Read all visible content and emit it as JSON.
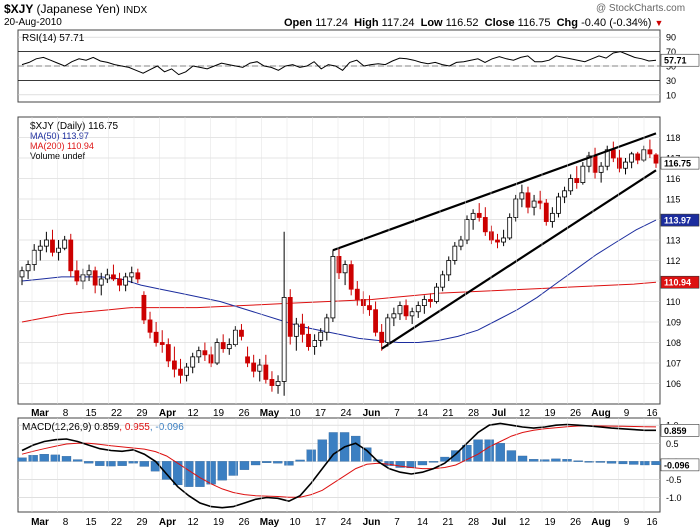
{
  "header": {
    "symbol": "$XJY",
    "name": "(Japanese Yen)",
    "exchange": "INDX",
    "date": "20-Aug-2010",
    "open_label": "Open",
    "open": "117.24",
    "high_label": "High",
    "high": "117.24",
    "low_label": "Low",
    "low": "116.52",
    "close_label": "Close",
    "close": "116.75",
    "chg_label": "Chg",
    "chg": "-0.40 (-0.34%)",
    "watermark": "@ StockCharts.com"
  },
  "colors": {
    "up": "#000000",
    "down": "#cc0000",
    "ma50": "#1c2d9e",
    "ma200": "#dd1111",
    "macd": "#000000",
    "signal": "#dd1111",
    "histogram": "#3b7fc2",
    "grid": "#cccccc",
    "trendline": "#000000"
  },
  "chart_data": [
    {
      "type": "line",
      "panel": "rsi",
      "title": "RSI(14) 57.71",
      "last_value_label": "57.71",
      "ylim": [
        0,
        100
      ],
      "yticks": [
        90,
        70,
        50,
        30,
        10
      ],
      "reference_lines": [
        70,
        30
      ],
      "values": [
        52,
        55,
        60,
        62,
        58,
        54,
        50,
        56,
        60,
        58,
        62,
        57,
        55,
        52,
        50,
        48,
        44,
        40,
        45,
        50,
        42,
        46,
        38,
        42,
        50,
        48,
        46,
        50,
        54,
        52,
        50,
        48,
        54,
        56,
        50,
        48,
        44,
        50,
        52,
        48,
        50,
        56,
        46,
        52,
        50,
        44,
        55,
        58,
        50,
        52,
        53,
        52,
        57,
        61,
        60,
        58,
        55,
        53,
        55,
        52,
        50,
        55,
        56,
        58,
        60,
        55,
        60,
        63,
        60,
        58,
        62,
        64,
        56,
        56,
        58,
        64,
        62,
        60,
        58,
        56,
        60,
        64,
        61,
        68,
        70,
        66,
        62,
        60,
        57,
        58
      ]
    },
    {
      "type": "candlestick",
      "panel": "price",
      "title": "$XJY (Daily) 116.75",
      "ylim": [
        105,
        119
      ],
      "yticks": [
        106,
        107,
        108,
        109,
        110,
        111,
        112,
        113,
        114,
        115,
        116,
        117,
        118
      ],
      "grid": true,
      "legend_position": "top-left",
      "legend": [
        "$XJY (Daily) 116.75",
        "MA(50) 113.97",
        "MA(200) 110.94",
        "Volume undef"
      ],
      "x_tick_labels": [
        "Mar",
        "8",
        "15",
        "22",
        "29",
        "Apr",
        "12",
        "19",
        "26",
        "May",
        "10",
        "17",
        "24",
        "Jun",
        "7",
        "14",
        "21",
        "28",
        "Jul",
        "12",
        "19",
        "26",
        "Aug",
        "9",
        "16"
      ],
      "series_labels": {
        "last_close": "116.75",
        "ma50": "113.97",
        "ma200": "110.94"
      },
      "candles": [
        [
          111.2,
          111.7,
          110.8,
          111.5
        ],
        [
          111.5,
          112.0,
          111.1,
          111.8
        ],
        [
          111.8,
          112.8,
          111.5,
          112.5
        ],
        [
          112.5,
          113.0,
          112.0,
          112.7
        ],
        [
          112.7,
          113.4,
          112.4,
          113.0
        ],
        [
          113.0,
          113.5,
          112.2,
          112.4
        ],
        [
          112.4,
          113.0,
          112.0,
          112.6
        ],
        [
          112.6,
          113.2,
          112.5,
          113.0
        ],
        [
          113.0,
          113.3,
          111.2,
          111.5
        ],
        [
          111.5,
          112.0,
          110.8,
          111.0
        ],
        [
          111.0,
          111.6,
          110.6,
          111.3
        ],
        [
          111.3,
          111.8,
          111.0,
          111.5
        ],
        [
          111.5,
          111.7,
          110.4,
          110.8
        ],
        [
          110.8,
          111.4,
          110.3,
          111.1
        ],
        [
          111.1,
          111.6,
          110.9,
          111.3
        ],
        [
          111.3,
          111.8,
          111.0,
          111.1
        ],
        [
          111.1,
          111.4,
          110.5,
          110.8
        ],
        [
          110.8,
          111.4,
          110.5,
          111.2
        ],
        [
          111.2,
          111.7,
          110.9,
          111.4
        ],
        [
          111.4,
          111.6,
          110.9,
          111.1
        ],
        [
          110.3,
          110.5,
          108.9,
          109.1
        ],
        [
          109.1,
          109.5,
          108.2,
          108.5
        ],
        [
          108.5,
          109.0,
          107.8,
          108.0
        ],
        [
          108.0,
          108.6,
          107.5,
          107.9
        ],
        [
          107.9,
          108.2,
          106.8,
          107.1
        ],
        [
          107.1,
          107.8,
          106.3,
          106.7
        ],
        [
          106.7,
          107.2,
          106.0,
          106.4
        ],
        [
          106.4,
          107.0,
          106.1,
          106.8
        ],
        [
          106.8,
          107.5,
          106.5,
          107.3
        ],
        [
          107.3,
          107.8,
          107.0,
          107.6
        ],
        [
          107.6,
          108.0,
          107.1,
          107.4
        ],
        [
          107.4,
          107.8,
          106.8,
          107.0
        ],
        [
          107.0,
          108.2,
          106.9,
          108.0
        ],
        [
          108.0,
          108.4,
          107.5,
          107.7
        ],
        [
          107.7,
          108.2,
          107.4,
          107.9
        ],
        [
          107.9,
          108.8,
          107.8,
          108.6
        ],
        [
          108.6,
          108.9,
          108.1,
          108.3
        ],
        [
          107.3,
          107.8,
          106.8,
          107.0
        ],
        [
          107.0,
          107.4,
          106.3,
          106.6
        ],
        [
          106.6,
          107.2,
          106.1,
          106.9
        ],
        [
          106.9,
          107.4,
          106.0,
          106.2
        ],
        [
          106.2,
          106.6,
          105.6,
          105.9
        ],
        [
          105.9,
          106.4,
          105.5,
          106.1
        ],
        [
          106.1,
          113.4,
          105.4,
          110.2
        ],
        [
          110.2,
          110.6,
          107.9,
          108.3
        ],
        [
          108.3,
          109.2,
          107.6,
          108.9
        ],
        [
          108.9,
          109.4,
          108.0,
          108.4
        ],
        [
          108.4,
          108.8,
          107.6,
          107.8
        ],
        [
          107.8,
          108.4,
          107.4,
          108.1
        ],
        [
          108.1,
          108.7,
          107.8,
          108.5
        ],
        [
          108.5,
          109.4,
          108.1,
          109.2
        ],
        [
          109.2,
          112.5,
          109.0,
          112.2
        ],
        [
          112.2,
          112.6,
          111.1,
          111.4
        ],
        [
          111.4,
          112.0,
          110.8,
          111.8
        ],
        [
          111.8,
          112.0,
          110.3,
          110.6
        ],
        [
          110.6,
          111.0,
          109.8,
          110.1
        ],
        [
          110.1,
          110.5,
          109.4,
          109.8
        ],
        [
          109.8,
          110.3,
          109.3,
          109.6
        ],
        [
          109.6,
          110.0,
          108.3,
          108.5
        ],
        [
          108.5,
          108.9,
          107.6,
          108.0
        ],
        [
          108.0,
          109.4,
          107.8,
          109.2
        ],
        [
          109.2,
          109.7,
          108.8,
          109.4
        ],
        [
          109.4,
          110.0,
          109.1,
          109.8
        ],
        [
          109.8,
          110.1,
          109.1,
          109.3
        ],
        [
          109.3,
          109.7,
          108.9,
          109.5
        ],
        [
          109.5,
          110.0,
          109.2,
          109.8
        ],
        [
          109.8,
          110.3,
          109.4,
          110.1
        ],
        [
          110.1,
          110.4,
          109.7,
          110.0
        ],
        [
          110.0,
          110.9,
          109.9,
          110.7
        ],
        [
          110.7,
          111.5,
          110.5,
          111.3
        ],
        [
          111.3,
          112.2,
          111.0,
          112.0
        ],
        [
          112.0,
          112.9,
          111.8,
          112.7
        ],
        [
          112.7,
          113.2,
          112.5,
          113.0
        ],
        [
          113.0,
          114.2,
          112.8,
          114.0
        ],
        [
          114.0,
          114.5,
          113.5,
          114.3
        ],
        [
          114.3,
          114.8,
          113.9,
          114.1
        ],
        [
          114.1,
          114.6,
          113.2,
          113.4
        ],
        [
          113.4,
          113.7,
          112.8,
          113.0
        ],
        [
          113.0,
          113.3,
          112.6,
          112.9
        ],
        [
          112.9,
          113.5,
          112.7,
          113.1
        ],
        [
          113.1,
          114.3,
          113.0,
          114.1
        ],
        [
          114.1,
          115.2,
          113.9,
          115.0
        ],
        [
          115.0,
          115.7,
          114.6,
          115.3
        ],
        [
          115.3,
          115.6,
          114.3,
          114.6
        ],
        [
          114.6,
          115.2,
          114.2,
          114.9
        ],
        [
          114.9,
          115.4,
          114.5,
          114.8
        ],
        [
          114.8,
          115.0,
          113.7,
          113.9
        ],
        [
          113.9,
          114.6,
          113.6,
          114.3
        ],
        [
          114.3,
          115.3,
          114.1,
          115.1
        ],
        [
          115.1,
          115.6,
          114.8,
          115.4
        ],
        [
          115.4,
          116.2,
          115.2,
          116.0
        ],
        [
          116.0,
          116.6,
          115.5,
          115.8
        ],
        [
          115.8,
          116.8,
          115.7,
          116.6
        ],
        [
          116.6,
          117.3,
          116.3,
          117.1
        ],
        [
          117.1,
          117.5,
          116.0,
          116.3
        ],
        [
          116.3,
          116.8,
          115.8,
          116.6
        ],
        [
          116.6,
          117.6,
          116.4,
          117.4
        ],
        [
          117.4,
          117.8,
          116.8,
          117.0
        ],
        [
          117.0,
          117.4,
          116.3,
          116.5
        ],
        [
          116.5,
          117.0,
          116.2,
          116.8
        ],
        [
          116.8,
          117.3,
          116.5,
          117.2
        ],
        [
          117.2,
          117.3,
          116.7,
          116.9
        ],
        [
          116.9,
          117.6,
          116.8,
          117.4
        ],
        [
          117.4,
          117.9,
          117.0,
          117.2
        ],
        [
          117.15,
          117.24,
          116.52,
          116.75
        ]
      ],
      "ma50": [
        111.0,
        111.1,
        111.2,
        111.2,
        111.2,
        111.1,
        110.8,
        110.6,
        110.4,
        110.2,
        110.0,
        109.7,
        109.4,
        109.1,
        108.8,
        108.6,
        108.4,
        108.2,
        108.1,
        108.0,
        108.0,
        108.1,
        108.3,
        108.6,
        109.1,
        109.6,
        110.2,
        110.9,
        111.6,
        112.3,
        112.9,
        113.5,
        113.97
      ],
      "ma200": [
        109.0,
        109.2,
        109.4,
        109.5,
        109.6,
        109.7,
        109.7,
        109.7,
        109.7,
        109.75,
        109.8,
        109.85,
        109.9,
        109.95,
        110.0,
        110.05,
        110.1,
        110.2,
        110.3,
        110.4,
        110.45,
        110.5,
        110.55,
        110.6,
        110.65,
        110.7,
        110.75,
        110.8,
        110.85,
        110.94
      ],
      "annotations": [
        "rising wedge trendlines"
      ]
    },
    {
      "type": "line",
      "panel": "macd",
      "title": "MACD(12,26,9) 0.859, 0.955, -0.096",
      "series_names": [
        "MACD(12,26,9)",
        "signal",
        "histogram"
      ],
      "legend_values": [
        "0.859",
        "0.955",
        "-0.096"
      ],
      "ylim": [
        -1.4,
        1.2
      ],
      "yticks": [
        1.0,
        0.5,
        0.0,
        -0.5,
        -1.0
      ],
      "last_value_labels": [
        "0.859",
        "-0.096"
      ],
      "macd": [
        0.3,
        0.45,
        0.55,
        0.6,
        0.62,
        0.55,
        0.45,
        0.35,
        0.3,
        0.28,
        0.32,
        0.2,
        0.0,
        -0.35,
        -0.7,
        -0.95,
        -1.15,
        -1.25,
        -1.28,
        -1.25,
        -1.15,
        -1.05,
        -1.0,
        -1.02,
        -1.1,
        -0.95,
        -0.6,
        -0.2,
        0.2,
        0.4,
        0.5,
        0.3,
        0.0,
        -0.2,
        -0.3,
        -0.35,
        -0.3,
        -0.2,
        -0.05,
        0.2,
        0.5,
        0.8,
        1.0,
        1.05,
        1.0,
        0.95,
        0.92,
        0.95,
        1.0,
        1.02,
        1.0,
        0.98,
        0.95,
        0.92,
        0.9,
        0.88,
        0.86,
        0.859
      ],
      "signal": [
        0.2,
        0.28,
        0.35,
        0.42,
        0.48,
        0.5,
        0.5,
        0.47,
        0.43,
        0.4,
        0.37,
        0.34,
        0.27,
        0.15,
        -0.05,
        -0.25,
        -0.45,
        -0.62,
        -0.76,
        -0.86,
        -0.92,
        -0.95,
        -0.96,
        -0.97,
        -0.99,
        -0.99,
        -0.92,
        -0.8,
        -0.6,
        -0.4,
        -0.2,
        -0.08,
        -0.05,
        -0.08,
        -0.13,
        -0.17,
        -0.2,
        -0.2,
        -0.17,
        -0.1,
        0.05,
        0.2,
        0.4,
        0.55,
        0.7,
        0.8,
        0.86,
        0.9,
        0.93,
        0.96,
        0.98,
        0.985,
        0.98,
        0.975,
        0.97,
        0.965,
        0.96,
        0.955
      ],
      "histogram": [
        0.1,
        0.17,
        0.2,
        0.18,
        0.14,
        0.05,
        -0.05,
        -0.12,
        -0.13,
        -0.12,
        -0.05,
        -0.14,
        -0.27,
        -0.5,
        -0.65,
        -0.7,
        -0.7,
        -0.63,
        -0.52,
        -0.39,
        -0.23,
        -0.1,
        -0.04,
        -0.05,
        -0.11,
        0.04,
        0.32,
        0.6,
        0.8,
        0.8,
        0.7,
        0.38,
        0.05,
        -0.12,
        -0.17,
        -0.18,
        -0.1,
        0.0,
        0.12,
        0.3,
        0.45,
        0.6,
        0.6,
        0.5,
        0.3,
        0.15,
        0.06,
        0.05,
        0.07,
        0.06,
        0.02,
        -0.005,
        -0.03,
        -0.055,
        -0.07,
        -0.085,
        -0.1,
        -0.096
      ]
    }
  ]
}
